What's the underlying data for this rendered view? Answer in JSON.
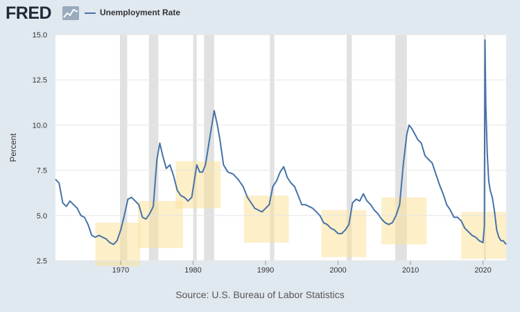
{
  "header": {
    "logo_text": "FRED",
    "logo_icon": "chart-line-icon",
    "legend_label": "Unemployment Rate"
  },
  "colors": {
    "background": "#e1e9f0",
    "plot_background": "#ffffff",
    "series": "#4572a7",
    "recession": "#e1e1e1",
    "highlight_box": "#fbe29b"
  },
  "source_text": "Source: U.S. Bureau of Labor Statistics",
  "chart_data": {
    "type": "line",
    "title": "Unemployment Rate",
    "xlabel": "",
    "ylabel": "Percent",
    "xlim": [
      1961.0,
      2023.2
    ],
    "ylim": [
      2.5,
      15.0
    ],
    "grid": true,
    "legend_position": "top-left",
    "x_ticks": [
      1970,
      1980,
      1990,
      2000,
      2010,
      2020
    ],
    "x_tick_labels": [
      "1970",
      "1980",
      "1990",
      "2000",
      "2010",
      "2020"
    ],
    "y_ticks": [
      2.5,
      5.0,
      7.5,
      10.0,
      12.5,
      15.0
    ],
    "y_tick_labels": [
      "2.5",
      "5.0",
      "7.5",
      "10.0",
      "12.5",
      "15.0"
    ],
    "recessions": [
      [
        1969.9,
        1970.9
      ],
      [
        1973.9,
        1975.2
      ],
      [
        1980.0,
        1980.5
      ],
      [
        1981.5,
        1982.9
      ],
      [
        1990.6,
        1991.2
      ],
      [
        2001.2,
        2001.9
      ],
      [
        2007.9,
        2009.5
      ],
      [
        2020.1,
        2020.4
      ]
    ],
    "highlight_boxes": [
      {
        "x0": 1966.5,
        "x1": 1972.7,
        "y0": 2.2,
        "y1": 4.6
      },
      {
        "x0": 1972.4,
        "x1": 1978.6,
        "y0": 3.2,
        "y1": 5.8
      },
      {
        "x0": 1977.6,
        "x1": 1983.8,
        "y0": 5.4,
        "y1": 8.0
      },
      {
        "x0": 1987.0,
        "x1": 1993.2,
        "y0": 3.5,
        "y1": 6.1
      },
      {
        "x0": 1997.7,
        "x1": 2003.9,
        "y0": 2.7,
        "y1": 5.3
      },
      {
        "x0": 2006.0,
        "x1": 2012.2,
        "y0": 3.4,
        "y1": 6.0
      },
      {
        "x0": 2017.0,
        "x1": 2023.2,
        "y0": 2.6,
        "y1": 5.2
      }
    ],
    "series": [
      {
        "name": "Unemployment Rate",
        "x": [
          1961.0,
          1961.5,
          1962.0,
          1962.5,
          1963.0,
          1963.5,
          1964.0,
          1964.5,
          1965.0,
          1965.5,
          1966.0,
          1966.5,
          1967.0,
          1967.5,
          1968.0,
          1968.5,
          1969.0,
          1969.5,
          1970.0,
          1970.5,
          1971.0,
          1971.5,
          1972.0,
          1972.5,
          1973.0,
          1973.5,
          1974.0,
          1974.5,
          1975.0,
          1975.4,
          1975.8,
          1976.3,
          1976.8,
          1977.3,
          1977.8,
          1978.3,
          1978.8,
          1979.3,
          1979.8,
          1980.2,
          1980.5,
          1980.9,
          1981.3,
          1981.7,
          1982.1,
          1982.5,
          1982.9,
          1983.3,
          1983.7,
          1984.2,
          1984.8,
          1985.5,
          1986.2,
          1986.9,
          1987.5,
          1988.0,
          1988.5,
          1989.0,
          1989.5,
          1990.0,
          1990.5,
          1991.0,
          1991.5,
          1992.0,
          1992.5,
          1993.0,
          1993.5,
          1994.0,
          1994.5,
          1995.0,
          1995.5,
          1996.0,
          1996.5,
          1997.0,
          1997.5,
          1998.0,
          1998.5,
          1999.0,
          1999.5,
          2000.0,
          2000.5,
          2001.0,
          2001.5,
          2002.0,
          2002.5,
          2003.0,
          2003.5,
          2004.0,
          2004.5,
          2005.0,
          2005.5,
          2006.0,
          2006.5,
          2007.0,
          2007.5,
          2008.0,
          2008.5,
          2009.0,
          2009.5,
          2009.8,
          2010.2,
          2010.6,
          2011.0,
          2011.5,
          2012.0,
          2012.5,
          2013.0,
          2013.5,
          2014.0,
          2014.5,
          2015.0,
          2015.5,
          2016.0,
          2016.5,
          2017.0,
          2017.5,
          2018.0,
          2018.5,
          2019.0,
          2019.5,
          2020.0,
          2020.2,
          2020.28,
          2020.4,
          2020.6,
          2020.8,
          2021.0,
          2021.3,
          2021.6,
          2021.9,
          2022.2,
          2022.5,
          2022.8,
          2023.2
        ],
        "y": [
          7.0,
          6.8,
          5.7,
          5.5,
          5.8,
          5.6,
          5.4,
          5.0,
          4.9,
          4.5,
          3.9,
          3.8,
          3.9,
          3.8,
          3.7,
          3.5,
          3.4,
          3.6,
          4.2,
          5.0,
          5.9,
          6.0,
          5.8,
          5.6,
          4.9,
          4.8,
          5.1,
          5.5,
          8.1,
          9.0,
          8.3,
          7.6,
          7.8,
          7.2,
          6.4,
          6.1,
          6.0,
          5.8,
          6.0,
          7.0,
          7.8,
          7.4,
          7.4,
          7.8,
          8.8,
          9.8,
          10.8,
          10.1,
          9.2,
          7.8,
          7.4,
          7.3,
          7.0,
          6.6,
          6.0,
          5.7,
          5.4,
          5.3,
          5.2,
          5.4,
          5.6,
          6.6,
          6.9,
          7.4,
          7.7,
          7.1,
          6.8,
          6.6,
          6.1,
          5.6,
          5.6,
          5.5,
          5.4,
          5.2,
          5.0,
          4.6,
          4.5,
          4.3,
          4.2,
          4.0,
          4.0,
          4.2,
          4.5,
          5.7,
          5.9,
          5.8,
          6.2,
          5.8,
          5.6,
          5.3,
          5.1,
          4.8,
          4.6,
          4.5,
          4.6,
          5.0,
          5.6,
          7.8,
          9.5,
          10.0,
          9.8,
          9.5,
          9.2,
          9.0,
          8.3,
          8.1,
          7.9,
          7.3,
          6.7,
          6.2,
          5.6,
          5.3,
          4.9,
          4.9,
          4.7,
          4.3,
          4.1,
          3.9,
          3.8,
          3.6,
          3.5,
          4.4,
          14.7,
          11.1,
          8.4,
          6.9,
          6.4,
          6.0,
          5.2,
          4.2,
          3.8,
          3.6,
          3.6,
          3.4
        ]
      }
    ]
  }
}
